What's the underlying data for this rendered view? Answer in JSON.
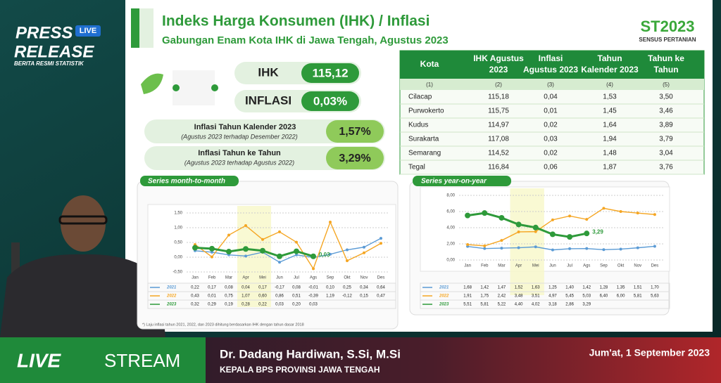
{
  "overlay": {
    "press": "PRESS",
    "live": "LIVE",
    "release": "RELEASE",
    "subtitle": "BERITA RESMI STATISTIK"
  },
  "slide": {
    "title": "Indeks Harga Konsumen (IHK) / Inflasi",
    "subtitle": "Gabungan Enam Kota IHK di Jawa Tengah, Agustus 2023",
    "logo": "ST2023",
    "logo_caption": "SENSUS PERTANIAN",
    "ihk_label": "IHK",
    "ihk_value": "115,12",
    "inflasi_label": "INFLASI",
    "inflasi_value": "0,03%",
    "kalender_label": "Inflasi Tahun Kalender 2023",
    "kalender_note": "(Agustus 2023 terhadap Desember 2022)",
    "kalender_value": "1,57%",
    "yoy_label": "Inflasi Tahun ke Tahun",
    "yoy_note": "(Agustus 2023 terhadap Agustus 2022)",
    "yoy_value": "3,29%",
    "footnote": "*) Laju inflasi tahun 2021, 2022, dan 2023 dihitung berdasarkan IHK dengan tahun dasar 2018"
  },
  "table": {
    "headers": [
      [
        "Kota"
      ],
      [
        "IHK Agustus",
        "2023"
      ],
      [
        "Inflasi",
        "Agustus 2023"
      ],
      [
        "Tahun",
        "Kalender 2023"
      ],
      [
        "Tahun ke",
        "Tahun"
      ]
    ],
    "numbers": [
      "(1)",
      "(2)",
      "(3)",
      "(4)",
      "(5)"
    ],
    "rows": [
      [
        "Cilacap",
        "115,18",
        "0,04",
        "1,53",
        "3,50"
      ],
      [
        "Purwokerto",
        "115,75",
        "0,01",
        "1,45",
        "3,46"
      ],
      [
        "Kudus",
        "114,97",
        "0,02",
        "1,64",
        "3,89"
      ],
      [
        "Surakarta",
        "117,08",
        "0,03",
        "1,94",
        "3,79"
      ],
      [
        "Semarang",
        "114,52",
        "0,02",
        "1,48",
        "3,04"
      ],
      [
        "Tegal",
        "116,84",
        "0,06",
        "1,87",
        "3,76"
      ]
    ]
  },
  "chart_data": [
    {
      "type": "line",
      "title": "Series month-to-month",
      "categories": [
        "Jan",
        "Feb",
        "Mar",
        "Apr",
        "Mei",
        "Jun",
        "Jul",
        "Ags",
        "Sep",
        "Okt",
        "Nov",
        "Des"
      ],
      "ylim": [
        -0.5,
        1.5
      ],
      "yticks": [
        {
          "value": -0.5,
          "label": "-0,50"
        },
        {
          "value": 0,
          "label": "0,00"
        },
        {
          "value": 0.5,
          "label": "0,50"
        },
        {
          "value": 1,
          "label": "1,00"
        },
        {
          "value": 1.5,
          "label": "1,50"
        }
      ],
      "series": [
        {
          "name": "2021",
          "color": "#5b9bd5",
          "values": [
            0.22,
            0.17,
            0.08,
            0.04,
            0.17,
            -0.17,
            0.08,
            -0.01,
            0.1,
            0.25,
            0.34,
            0.64
          ],
          "value_labels": [
            "0,22",
            "0,17",
            "0,08",
            "0,04",
            "0,17",
            "-0,17",
            "0,08",
            "-0,01",
            "0,10",
            "0,25",
            "0,34",
            "0,64"
          ]
        },
        {
          "name": "2022",
          "color": "#f5a623",
          "values": [
            0.43,
            0.01,
            0.75,
            1.07,
            0.6,
            0.86,
            0.51,
            -0.39,
            1.19,
            -0.12,
            0.15,
            0.47
          ],
          "value_labels": [
            "0,43",
            "0,01",
            "0,75",
            "1,07",
            "0,60",
            "0,86",
            "0,51",
            "-0,39",
            "1,19",
            "-0,12",
            "0,15",
            "0,47"
          ]
        },
        {
          "name": "2023",
          "color": "#2e9a3a",
          "values": [
            0.32,
            0.29,
            0.19,
            0.28,
            0.22,
            0.03,
            0.2,
            0.03,
            null,
            null,
            null,
            null
          ],
          "value_labels": [
            "0,32",
            "0,29",
            "0,19",
            "0,28",
            "0,22",
            "0,03",
            "0,20",
            "0,03",
            null,
            null,
            null,
            null
          ]
        }
      ],
      "annotation": "0,03"
    },
    {
      "type": "line",
      "title": "Series year-on-year",
      "categories": [
        "Jan",
        "Feb",
        "Mar",
        "Apr",
        "Mei",
        "Jun",
        "Jul",
        "Ags",
        "Sep",
        "Okt",
        "Nov",
        "Des"
      ],
      "ylim": [
        0,
        8
      ],
      "yticks": [
        {
          "value": 0,
          "label": "0,00"
        },
        {
          "value": 2,
          "label": "2,00"
        },
        {
          "value": 4,
          "label": "4,00"
        },
        {
          "value": 6,
          "label": "6,00"
        },
        {
          "value": 8,
          "label": "8,00"
        }
      ],
      "series": [
        {
          "name": "2021",
          "color": "#5b9bd5",
          "values": [
            1.68,
            1.42,
            1.47,
            1.52,
            1.63,
            1.25,
            1.4,
            1.42,
            1.28,
            1.35,
            1.51,
            1.7
          ],
          "value_labels": [
            "1,68",
            "1,42",
            "1,47",
            "1,52",
            "1,63",
            "1,25",
            "1,40",
            "1,42",
            "1,28",
            "1,35",
            "1,51",
            "1,70"
          ]
        },
        {
          "name": "2022",
          "color": "#f5a623",
          "values": [
            1.91,
            1.75,
            2.42,
            3.48,
            3.51,
            4.97,
            5.45,
            5.03,
            6.4,
            6.0,
            5.81,
            5.63
          ],
          "value_labels": [
            "1,91",
            "1,75",
            "2,42",
            "3,48",
            "3,51",
            "4,97",
            "5,45",
            "5,03",
            "6,40",
            "6,00",
            "5,81",
            "5,63"
          ]
        },
        {
          "name": "2023",
          "color": "#2e9a3a",
          "values": [
            5.51,
            5.81,
            5.22,
            4.4,
            4.02,
            3.18,
            2.86,
            3.29,
            null,
            null,
            null,
            null
          ],
          "value_labels": [
            "5,51",
            "5,81",
            "5,22",
            "4,40",
            "4,02",
            "3,18",
            "2,86",
            "3,29",
            null,
            null,
            null,
            null
          ]
        }
      ],
      "annotation": "3,29"
    }
  ],
  "lower_third": {
    "live": "LIVE",
    "stream": "STREAM",
    "name": "Dr. Dadang Hardiwan, S.Si, M.Si",
    "role": "KEPALA BPS PROVINSI JAWA TENGAH",
    "date": "Jum'at, 1 September 2023"
  }
}
